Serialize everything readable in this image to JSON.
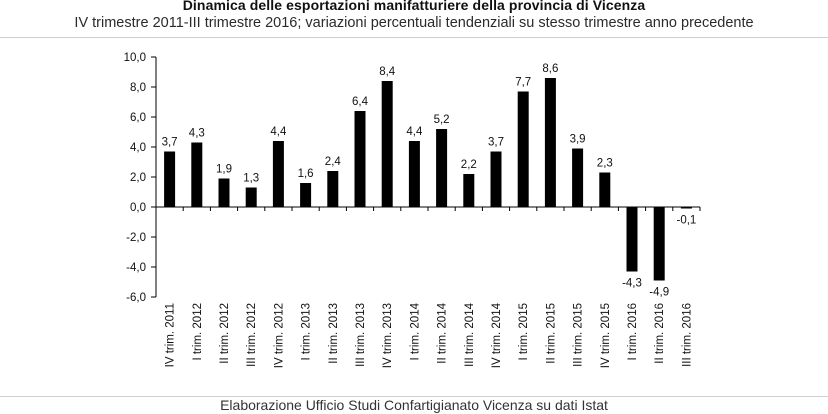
{
  "header": {
    "title": "Dinamica delle esportazioni manifatturiere della provincia di Vicenza",
    "subtitle": "IV trimestre 2011-III trimestre 2016; variazioni percentuali tendenziali su stesso trimestre anno precedente"
  },
  "footer": {
    "source": "Elaborazione Ufficio Studi Confartigianato Vicenza su dati Istat"
  },
  "colors": {
    "bar": "#000000",
    "axis": "#000000",
    "text": "#111111"
  },
  "chart_data": {
    "type": "bar",
    "title": "Dinamica delle esportazioni manifatturiere della provincia di Vicenza",
    "subtitle": "IV trimestre 2011-III trimestre 2016; variazioni percentuali tendenziali su stesso trimestre anno precedente",
    "xlabel": "",
    "ylabel": "",
    "ylim": [
      -6,
      10
    ],
    "yticks": [
      -6,
      -4,
      -2,
      0,
      2,
      4,
      6,
      8,
      10
    ],
    "ytick_labels": [
      "-6,0",
      "-4,0",
      "-2,0",
      "0,0",
      "2,0",
      "4,0",
      "6,0",
      "8,0",
      "10,0"
    ],
    "grid": false,
    "legend": "none",
    "categories": [
      "IV trim. 2011",
      "I trim. 2012",
      "II trim. 2012",
      "III trim. 2012",
      "IV trim. 2012",
      "I trim. 2013",
      "II trim. 2013",
      "III trim. 2013",
      "IV trim. 2013",
      "I trim. 2014",
      "II trim. 2014",
      "III trim. 2014",
      "IV trim. 2014",
      "I trim. 2015",
      "II trim. 2015",
      "III trim. 2015",
      "IV trim. 2015",
      "I trim. 2016",
      "II trim. 2016",
      "III trim. 2016"
    ],
    "values": [
      3.7,
      4.3,
      1.9,
      1.3,
      4.4,
      1.6,
      2.4,
      6.4,
      8.4,
      4.4,
      5.2,
      2.2,
      3.7,
      7.7,
      8.6,
      3.9,
      2.3,
      -4.3,
      -4.9,
      -0.1
    ],
    "data_labels": [
      "3,7",
      "4,3",
      "1,9",
      "1,3",
      "4,4",
      "1,6",
      "2,4",
      "6,4",
      "8,4",
      "4,4",
      "5,2",
      "2,2",
      "3,7",
      "7,7",
      "8,6",
      "3,9",
      "2,3",
      "-4,3",
      "-4,9",
      "-0,1"
    ]
  }
}
